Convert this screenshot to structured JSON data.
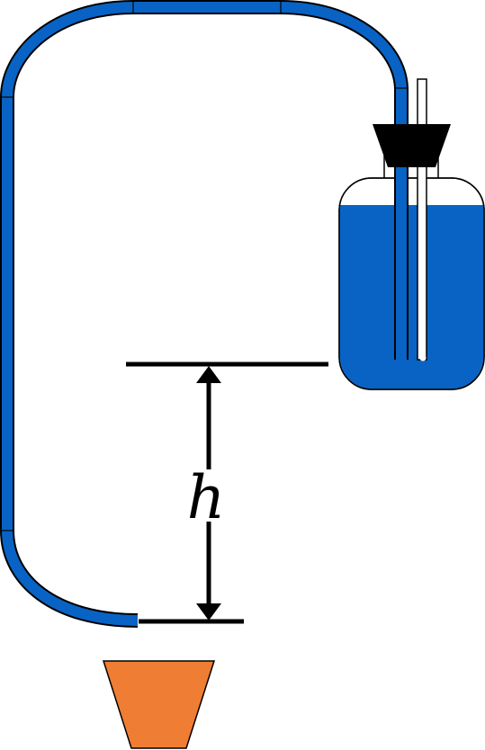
{
  "diagram": {
    "height_label": "h"
  },
  "colors": {
    "tube": "#0863c4",
    "liquid": "#0863c4",
    "stopper": "#000000",
    "cup": "#ef7d33",
    "outline": "#000000",
    "background": "#ffffff"
  },
  "icons": {
    "dimension_arrow": "double-headed-vertical-arrow-icon"
  }
}
